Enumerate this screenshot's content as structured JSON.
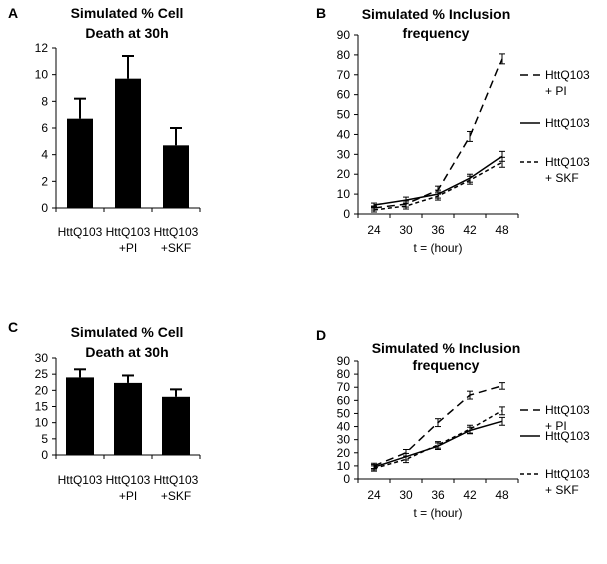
{
  "panels": {
    "A": {
      "letter": "A"
    },
    "B": {
      "letter": "B"
    },
    "C": {
      "letter": "C"
    },
    "D": {
      "letter": "D"
    }
  },
  "colors": {
    "bar": "#000000",
    "axis": "#000000",
    "background": "#ffffff"
  },
  "chart_data": [
    {
      "id": "A",
      "type": "bar",
      "title_lines": [
        "Simulated % Cell",
        "Death  at 30h"
      ],
      "categories": [
        [
          "HttQ103"
        ],
        [
          "HttQ103",
          "+PI"
        ],
        [
          "HttQ103",
          "+SKF"
        ]
      ],
      "values": [
        6.7,
        9.7,
        4.7
      ],
      "errors": [
        1.5,
        1.7,
        1.3
      ],
      "ylim": [
        0,
        12
      ],
      "yticks": [
        0,
        2,
        4,
        6,
        8,
        10,
        12
      ],
      "xlabel": "",
      "ylabel": "",
      "grid": false
    },
    {
      "id": "B",
      "type": "line",
      "title_lines": [
        "Simulated % Inclusion",
        "frequency"
      ],
      "x": [
        24,
        30,
        36,
        42,
        48
      ],
      "xlabel": "t = (hour)",
      "ylim": [
        0,
        90
      ],
      "yticks": [
        0,
        10,
        20,
        30,
        40,
        50,
        60,
        70,
        80,
        90
      ],
      "series": [
        {
          "label_lines": [
            "HttQ103",
            "+ PI"
          ],
          "dash": "long",
          "values": [
            3,
            5,
            12,
            39,
            78
          ],
          "errors": [
            1,
            1.5,
            2,
            2.5,
            2.5
          ]
        },
        {
          "label_lines": [
            "HttQ103"
          ],
          "dash": "solid",
          "values": [
            4.5,
            7,
            10,
            18,
            29
          ],
          "errors": [
            1,
            1.5,
            2,
            2,
            2.5
          ]
        },
        {
          "label_lines": [
            "HttQ103",
            "+ SKF"
          ],
          "dash": "short",
          "values": [
            2,
            4,
            9,
            17,
            26
          ],
          "errors": [
            1,
            1.5,
            2,
            2,
            2.5
          ]
        }
      ]
    },
    {
      "id": "C",
      "type": "bar",
      "title_lines": [
        "Simulated % Cell",
        "Death at 30h"
      ],
      "categories": [
        [
          "HttQ103"
        ],
        [
          "HttQ103",
          "+PI"
        ],
        [
          "HttQ103",
          "+SKF"
        ]
      ],
      "values": [
        24,
        22.3,
        18
      ],
      "errors": [
        2.5,
        2.3,
        2.3
      ],
      "ylim": [
        0,
        30
      ],
      "yticks": [
        0,
        5,
        10,
        15,
        20,
        25,
        30
      ],
      "xlabel": "",
      "ylabel": "",
      "grid": false
    },
    {
      "id": "D",
      "type": "line",
      "title_lines": [
        "Simulated % Inclusion",
        "frequency"
      ],
      "x": [
        24,
        30,
        36,
        42,
        48
      ],
      "xlabel": "t = (hour)",
      "ylim": [
        0,
        90
      ],
      "yticks": [
        0,
        10,
        20,
        30,
        40,
        50,
        60,
        70,
        80,
        90
      ],
      "series": [
        {
          "label_lines": [
            "HttQ103",
            "+ PI"
          ],
          "dash": "long",
          "values": [
            10,
            20,
            43,
            64,
            71
          ],
          "errors": [
            2,
            2.5,
            3,
            3,
            2.5
          ]
        },
        {
          "label_lines": [
            "HttQ103"
          ],
          "dash": "solid",
          "values": [
            9,
            17,
            25,
            37,
            44
          ],
          "errors": [
            2,
            2.5,
            2.5,
            2.5,
            3
          ]
        },
        {
          "label_lines": [
            "HttQ103",
            "+ SKF"
          ],
          "dash": "short",
          "values": [
            8,
            15,
            26,
            38,
            52
          ],
          "errors": [
            2,
            2.5,
            2.5,
            3,
            3
          ]
        }
      ]
    }
  ]
}
